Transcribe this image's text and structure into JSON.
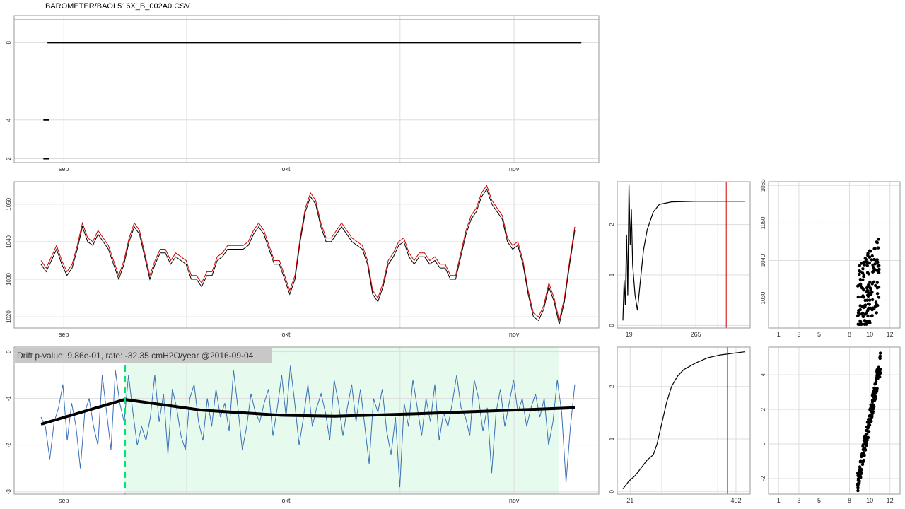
{
  "title": "BAROMETER/BAOL516X_B_002A0.CSV",
  "colors": {
    "grid": "#dddddd",
    "panel_border": "#999999",
    "black": "#000000",
    "red": "#cc0000",
    "blue": "#3a6fb5",
    "green_shade": "#e6fbee",
    "green_dash": "#00e676",
    "ref_line": "#f0b0b0",
    "annotation_bg": "#c8c8c8"
  },
  "chart_data": [
    {
      "id": "status",
      "type": "line",
      "x_ticks": [
        {
          "pos": 0.085,
          "label": "sep"
        },
        {
          "pos": 0.465,
          "label": "okt"
        },
        {
          "pos": 0.855,
          "label": "nov"
        }
      ],
      "y_ticks": [
        2,
        4,
        8
      ],
      "ylim": [
        1.8,
        9.4
      ],
      "reference_line": 9.2,
      "segments": [
        {
          "x": [
            0.05,
            0.06
          ],
          "y": 4
        },
        {
          "x": [
            0.05,
            0.06
          ],
          "y": 2
        },
        {
          "x": [
            0.057,
            0.97
          ],
          "y": 8
        }
      ]
    },
    {
      "id": "pressure",
      "type": "line",
      "x_ticks": [
        {
          "pos": 0.085,
          "label": "sep"
        },
        {
          "pos": 0.465,
          "label": "okt"
        },
        {
          "pos": 0.855,
          "label": "nov"
        }
      ],
      "y_ticks": [
        1020,
        1030,
        1040,
        1050
      ],
      "ylim": [
        1017,
        1056
      ],
      "series": [
        {
          "color": "black",
          "values": [
            1034,
            1032,
            1035,
            1038,
            1034,
            1031,
            1033,
            1038,
            1044,
            1040,
            1039,
            1042,
            1040,
            1038,
            1034,
            1030,
            1034,
            1040,
            1044,
            1042,
            1036,
            1030,
            1034,
            1037,
            1037,
            1034,
            1036,
            1035,
            1034,
            1030,
            1030,
            1028,
            1031,
            1031,
            1035,
            1036,
            1038,
            1038,
            1038,
            1038,
            1039,
            1042,
            1044,
            1042,
            1038,
            1034,
            1034,
            1030,
            1026,
            1030,
            1040,
            1048,
            1052,
            1050,
            1044,
            1040,
            1040,
            1042,
            1044,
            1042,
            1040,
            1039,
            1038,
            1034,
            1026,
            1024,
            1028,
            1034,
            1036,
            1039,
            1040,
            1036,
            1034,
            1036,
            1036,
            1034,
            1035,
            1033,
            1033,
            1030,
            1030,
            1036,
            1042,
            1046,
            1048,
            1052,
            1054,
            1050,
            1048,
            1046,
            1040,
            1038,
            1039,
            1034,
            1026,
            1020,
            1019,
            1022,
            1028,
            1024,
            1018,
            1024,
            1034,
            1043
          ]
        },
        {
          "color": "red",
          "values": [
            1035,
            1033,
            1036,
            1039,
            1035,
            1032,
            1034,
            1039,
            1045,
            1041,
            1040,
            1043,
            1041,
            1039,
            1035,
            1031,
            1035,
            1041,
            1045,
            1043,
            1037,
            1031,
            1035,
            1038,
            1038,
            1035,
            1037,
            1036,
            1035,
            1031,
            1031,
            1029,
            1032,
            1032,
            1036,
            1037,
            1039,
            1039,
            1039,
            1039,
            1040,
            1043,
            1045,
            1043,
            1039,
            1035,
            1035,
            1031,
            1027,
            1031,
            1041,
            1049,
            1053,
            1051,
            1045,
            1041,
            1041,
            1043,
            1045,
            1043,
            1041,
            1040,
            1039,
            1035,
            1027,
            1025,
            1029,
            1035,
            1037,
            1040,
            1041,
            1037,
            1035,
            1037,
            1037,
            1035,
            1036,
            1034,
            1034,
            1031,
            1031,
            1037,
            1043,
            1047,
            1049,
            1053,
            1055,
            1051,
            1049,
            1047,
            1041,
            1039,
            1040,
            1035,
            1027,
            1021,
            1020,
            1023,
            1029,
            1025,
            1019,
            1025,
            1035,
            1044
          ]
        }
      ]
    },
    {
      "id": "drift",
      "type": "line",
      "annotation": "Drift p-value: 9.86e-01, rate: -32.35 cmH2O/year @2016-09-04",
      "x_ticks": [
        {
          "pos": 0.085,
          "label": "sep"
        },
        {
          "pos": 0.465,
          "label": "okt"
        },
        {
          "pos": 0.855,
          "label": "nov"
        }
      ],
      "y_ticks": [
        0,
        -1,
        -2,
        -3
      ],
      "ylim": [
        -3.05,
        0.1
      ],
      "changepoint": 0.157,
      "shade_range": [
        0.157,
        0.97
      ],
      "residuals": [
        -1.4,
        -1.6,
        -2.3,
        -1.5,
        -1.2,
        -0.7,
        -1.9,
        -1.1,
        -1.6,
        -2.5,
        -1.3,
        -1.0,
        -1.6,
        -2.0,
        -0.5,
        -1.3,
        -2.1,
        -0.4,
        -1.1,
        -1.5,
        -0.5,
        -1.3,
        -2.0,
        -1.6,
        -1.9,
        -1.4,
        -0.5,
        -1.5,
        -0.9,
        -2.2,
        -0.8,
        -1.2,
        -1.8,
        -2.1,
        -1.0,
        -0.7,
        -1.5,
        -1.9,
        -1.0,
        -1.6,
        -0.8,
        -1.4,
        -1.1,
        -1.7,
        -0.4,
        -1.2,
        -2.1,
        -1.6,
        -0.9,
        -1.3,
        -1.5,
        -1.1,
        -0.8,
        -1.8,
        -1.2,
        -0.5,
        -1.4,
        -0.3,
        -1.1,
        -2.0,
        -1.4,
        -0.7,
        -1.6,
        -1.2,
        -0.9,
        -1.3,
        -1.9,
        -0.6,
        -1.1,
        -1.8,
        -1.2,
        -0.7,
        -1.5,
        -0.8,
        -1.6,
        -2.4,
        -1.0,
        -1.3,
        -0.8,
        -1.7,
        -2.2,
        -1.4,
        -2.9,
        -1.1,
        -1.6,
        -0.6,
        -1.2,
        -1.8,
        -1.0,
        -1.5,
        -0.7,
        -1.9,
        -1.3,
        -1.6,
        -1.1,
        -0.5,
        -1.2,
        -1.4,
        -1.8,
        -0.6,
        -1.0,
        -1.7,
        -1.2,
        -2.6,
        -1.3,
        -0.8,
        -1.6,
        -1.1,
        -0.6,
        -1.3,
        -1.0,
        -1.6,
        -1.2,
        -0.9,
        -1.4,
        -1.0,
        -2.0,
        -1.5,
        -0.6,
        -1.3,
        -2.8,
        -1.6,
        -0.7
      ],
      "trend": [
        {
          "x": 0.0,
          "y": -1.55
        },
        {
          "x": 0.157,
          "y": -1.02
        },
        {
          "x": 0.3,
          "y": -1.25
        },
        {
          "x": 0.45,
          "y": -1.36
        },
        {
          "x": 0.55,
          "y": -1.38
        },
        {
          "x": 0.7,
          "y": -1.33
        },
        {
          "x": 1.0,
          "y": -1.2
        }
      ]
    },
    {
      "id": "conv1",
      "type": "line",
      "x_ticks": [
        {
          "pos": 0.05,
          "label": "19"
        },
        {
          "pos": 0.6,
          "label": "265"
        }
      ],
      "y_ticks": [
        0,
        1,
        2
      ],
      "ylim": [
        -0.05,
        2.85
      ],
      "vline": 0.85,
      "curve": [
        [
          0.0,
          0.1
        ],
        [
          0.01,
          0.9
        ],
        [
          0.02,
          0.4
        ],
        [
          0.03,
          1.8
        ],
        [
          0.04,
          0.6
        ],
        [
          0.05,
          2.8
        ],
        [
          0.06,
          1.6
        ],
        [
          0.07,
          2.3
        ],
        [
          0.08,
          1.2
        ],
        [
          0.1,
          0.6
        ],
        [
          0.12,
          0.3
        ],
        [
          0.14,
          0.8
        ],
        [
          0.17,
          1.5
        ],
        [
          0.2,
          1.9
        ],
        [
          0.25,
          2.25
        ],
        [
          0.3,
          2.4
        ],
        [
          0.4,
          2.45
        ],
        [
          0.6,
          2.46
        ],
        [
          1.0,
          2.46
        ]
      ]
    },
    {
      "id": "conv2",
      "type": "line",
      "x_ticks": [
        {
          "pos": 0.06,
          "label": "21"
        },
        {
          "pos": 0.93,
          "label": "402"
        }
      ],
      "y_ticks": [
        0,
        1,
        2
      ],
      "ylim": [
        -0.05,
        2.75
      ],
      "vline": 0.86,
      "curve": [
        [
          0.0,
          0.05
        ],
        [
          0.05,
          0.2
        ],
        [
          0.1,
          0.3
        ],
        [
          0.15,
          0.45
        ],
        [
          0.2,
          0.6
        ],
        [
          0.25,
          0.7
        ],
        [
          0.28,
          0.9
        ],
        [
          0.32,
          1.3
        ],
        [
          0.36,
          1.7
        ],
        [
          0.4,
          2.0
        ],
        [
          0.45,
          2.2
        ],
        [
          0.5,
          2.32
        ],
        [
          0.6,
          2.45
        ],
        [
          0.7,
          2.55
        ],
        [
          0.8,
          2.6
        ],
        [
          0.9,
          2.63
        ],
        [
          1.0,
          2.66
        ]
      ]
    },
    {
      "id": "scatter1",
      "type": "scatter",
      "x_ticks": [
        1,
        3,
        5,
        8,
        10,
        12
      ],
      "y_ticks": [
        1030,
        1040,
        1050,
        1060
      ],
      "xlim": [
        0,
        13
      ],
      "ylim": [
        1022,
        1061
      ]
    },
    {
      "id": "scatter2",
      "type": "scatter",
      "x_ticks": [
        1,
        3,
        5,
        8,
        10,
        12
      ],
      "y_ticks": [
        -2,
        0,
        2,
        4
      ],
      "xlim": [
        0,
        13
      ],
      "ylim": [
        -2.9,
        5.6
      ]
    }
  ]
}
